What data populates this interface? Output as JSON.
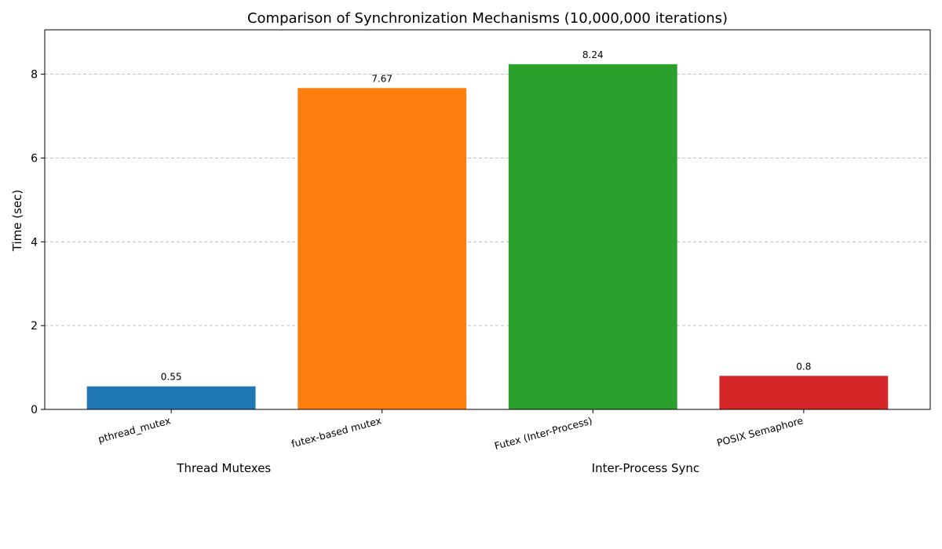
{
  "chart_data": {
    "type": "bar",
    "title": "Comparison of Synchronization Mechanisms (10,000,000 iterations)",
    "xlabel": "",
    "ylabel": "Time (sec)",
    "categories": [
      "pthread_mutex",
      "futex-based mutex",
      "Futex (Inter-Process)",
      "POSIX Semaphore"
    ],
    "values": [
      0.55,
      7.67,
      8.24,
      0.8
    ],
    "value_labels": [
      "0.55",
      "7.67",
      "8.24",
      "0.8"
    ],
    "colors": [
      "#1f77b4",
      "#ff7f0e",
      "#2ca02c",
      "#d62728"
    ],
    "ylim": [
      0,
      9.06
    ],
    "yticks": [
      0,
      2,
      4,
      6,
      8
    ],
    "grid": true,
    "groups": [
      {
        "label": "Thread Mutexes",
        "categories": [
          "pthread_mutex",
          "futex-based mutex"
        ]
      },
      {
        "label": "Inter-Process Sync",
        "categories": [
          "Futex (Inter-Process)",
          "POSIX Semaphore"
        ]
      }
    ]
  }
}
